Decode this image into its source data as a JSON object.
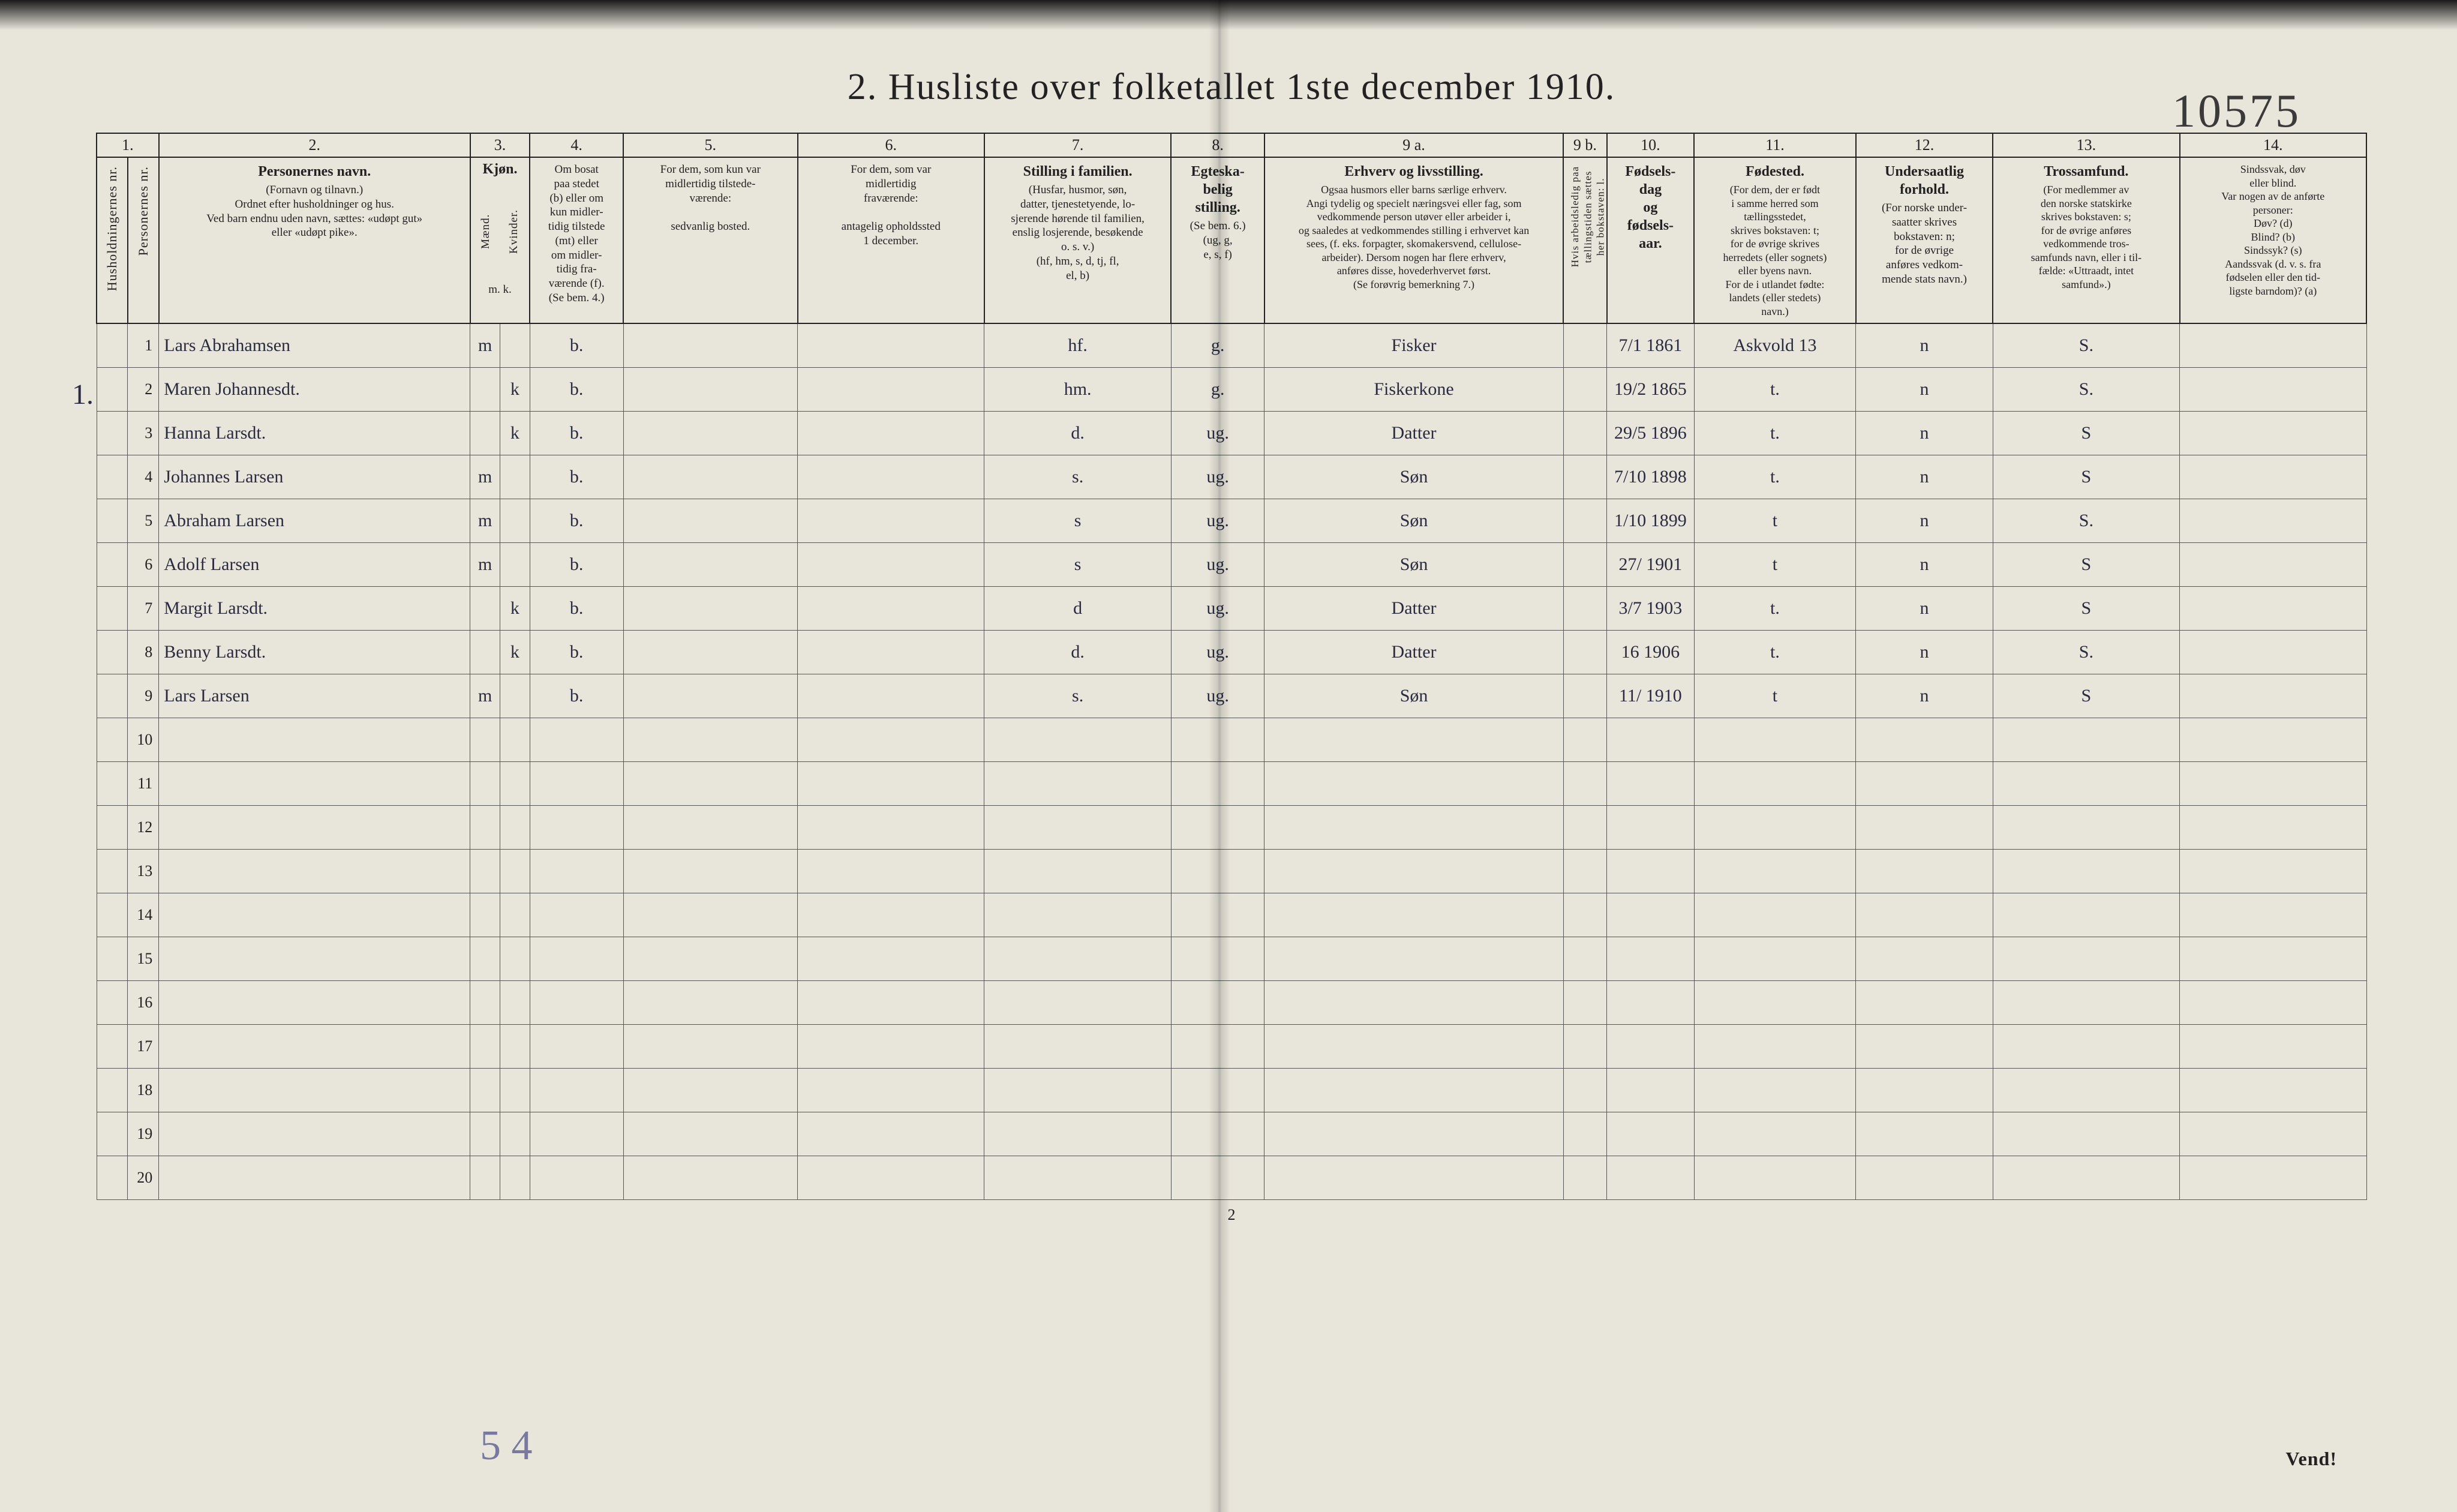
{
  "title": "2.  Husliste over folketallet 1ste december 1910.",
  "hand_note_top_right": "10575",
  "page_number_bottom": "2",
  "vend_label": "Vend!",
  "pencil_bottom": "5 4",
  "left_margin_mark": "1.",
  "column_numbers": [
    "1.",
    "2.",
    "3.",
    "4.",
    "5.",
    "6.",
    "7.",
    "8.",
    "9 a.",
    "9 b.",
    "10.",
    "11.",
    "12.",
    "13.",
    "14."
  ],
  "columns": {
    "c1": {
      "title": "",
      "desc_vert_a": "Husholdningernes nr.",
      "desc_vert_b": "Personernes nr."
    },
    "c2": {
      "title": "Personernes navn.",
      "desc": "(Fornavn og tilnavn.)\nOrdnet efter husholdninger og hus.\nVed barn endnu uden navn, sættes: «udøpt gut»\neller «udøpt pike»."
    },
    "c3": {
      "title": "Kjøn.",
      "sub_a": "Mænd.",
      "sub_b": "Kvinder.",
      "mk": "m.   k."
    },
    "c4": {
      "title": "",
      "desc": "Om bosat\npaa stedet\n(b) eller om\nkun midler-\ntidig tilstede\n(mt) eller\nom midler-\ntidig fra-\nværende (f).\n(Se bem. 4.)"
    },
    "c5": {
      "title": "",
      "desc": "For dem, som kun var\nmidlertidig tilstede-\nværende:\n\nsedvanlig bosted."
    },
    "c6": {
      "title": "",
      "desc": "For dem, som var\nmidlertidig\nfraværende:\n\nantagelig opholdssted\n1 december."
    },
    "c7": {
      "title": "Stilling i familien.",
      "desc": "(Husfar, husmor, søn,\ndatter, tjenestetyende, lo-\nsjerende hørende til familien,\nenslig losjerende, besøkende\no. s. v.)\n(hf, hm, s, d, tj, fl,\nel, b)"
    },
    "c8": {
      "title": "Egteska-\nbelig\nstilling.",
      "desc": "(Se bem. 6.)\n(ug, g,\ne, s, f)"
    },
    "c9a": {
      "title": "Erhverv og livsstilling.",
      "desc": "Ogsaa husmors eller barns særlige erhverv.\nAngi tydelig og specielt næringsvei eller fag, som\nvedkommende person utøver eller arbeider i,\nog saaledes at vedkommendes stilling i erhvervet kan\nsees, (f. eks. forpagter, skomakersvend, cellulose-\narbeider). Dersom nogen har flere erhverv,\nanføres disse, hovederhvervet først.\n(Se forøvrig bemerkning 7.)"
    },
    "c9b": {
      "title": "",
      "desc_vert": "Hvis arbeidsledig paa\ntællingstiden sættes\nher bokstaven: l."
    },
    "c10": {
      "title": "Fødsels-\ndag\nog\nfødsels-\naar."
    },
    "c11": {
      "title": "Fødested.",
      "desc": "(For dem, der er født\ni samme herred som\ntællingsstedet,\nskrives bokstaven: t;\nfor de øvrige skrives\nherredets (eller sognets)\neller byens navn.\nFor de i utlandet fødte:\nlandets (eller stedets)\nnavn.)"
    },
    "c12": {
      "title": "Undersaatlig\nforhold.",
      "desc": "(For norske under-\nsaatter skrives\nbokstaven: n;\nfor de øvrige\nanføres vedkom-\nmende stats navn.)"
    },
    "c13": {
      "title": "Trossamfund.",
      "desc": "(For medlemmer av\nden norske statskirke\nskrives bokstaven: s;\nfor de øvrige anføres\nvedkommende tros-\nsamfunds navn, eller i til-\nfælde: «Uttraadt, intet\nsamfund».)"
    },
    "c14": {
      "title": "",
      "desc": "Sindssvak, døv\neller blind.\nVar nogen av de anførte\npersoner:\nDøv?        (d)\nBlind?       (b)\nSindssyk?  (s)\nAandssvak (d. v. s. fra\nfødselen eller den tid-\nligste barndom)?  (a)"
    }
  },
  "widths": {
    "c1a": 50,
    "c1b": 50,
    "c2": 500,
    "c3a": 48,
    "c3b": 48,
    "c4": 150,
    "c5": 280,
    "c6": 300,
    "c7": 300,
    "c8": 150,
    "c9a": 480,
    "c9b": 70,
    "c10": 140,
    "c11": 260,
    "c12": 220,
    "c13": 300,
    "c14": 300
  },
  "total_rows": 20,
  "rows": [
    {
      "n": "1",
      "name": "Lars Abrahamsen",
      "sex": "m",
      "bosat": "b.",
      "c7": "hf.",
      "c8": "g.",
      "c9a": "Fisker",
      "c10": "7/1 1861",
      "c11": "Askvold  13",
      "c12": "n",
      "c13": "S."
    },
    {
      "n": "2",
      "name": "Maren Johannesdt.",
      "sex": "k",
      "bosat": "b.",
      "c7": "hm.",
      "c8": "g.",
      "c9a": "Fiskerkone",
      "c10": "19/2 1865",
      "c11": "t.",
      "c12": "n",
      "c13": "S."
    },
    {
      "n": "3",
      "name": "Hanna Larsdt.",
      "sex": "k",
      "bosat": "b.",
      "c7": "d.",
      "c8": "ug.",
      "c9a": "Datter",
      "c10": "29/5 1896",
      "c11": "t.",
      "c12": "n",
      "c13": "S"
    },
    {
      "n": "4",
      "name": "Johannes Larsen",
      "sex": "m",
      "bosat": "b.",
      "c7": "s.",
      "c8": "ug.",
      "c9a": "Søn",
      "c10": "7/10 1898",
      "c11": "t.",
      "c12": "n",
      "c13": "S"
    },
    {
      "n": "5",
      "name": "Abraham Larsen",
      "sex": "m",
      "bosat": "b.",
      "c7": "s",
      "c8": "ug.",
      "c9a": "Søn",
      "c10": "1/10 1899",
      "c11": "t",
      "c12": "n",
      "c13": "S."
    },
    {
      "n": "6",
      "name": "Adolf Larsen",
      "sex": "m",
      "bosat": "b.",
      "c7": "s",
      "c8": "ug.",
      "c9a": "Søn",
      "c10": "27/ 1901",
      "c11": "t",
      "c12": "n",
      "c13": "S"
    },
    {
      "n": "7",
      "name": "Margit Larsdt.",
      "sex": "k",
      "bosat": "b.",
      "c7": "d",
      "c8": "ug.",
      "c9a": "Datter",
      "c10": "3/7 1903",
      "c11": "t.",
      "c12": "n",
      "c13": "S"
    },
    {
      "n": "8",
      "name": "Benny Larsdt.",
      "sex": "k",
      "bosat": "b.",
      "c7": "d.",
      "c8": "ug.",
      "c9a": "Datter",
      "c10": "16 1906",
      "c11": "t.",
      "c12": "n",
      "c13": "S."
    },
    {
      "n": "9",
      "name": "Lars Larsen",
      "sex": "m",
      "bosat": "b.",
      "c7": "s.",
      "c8": "ug.",
      "c9a": "Søn",
      "c10": "11/ 1910",
      "c11": "t",
      "c12": "n",
      "c13": "S"
    }
  ]
}
